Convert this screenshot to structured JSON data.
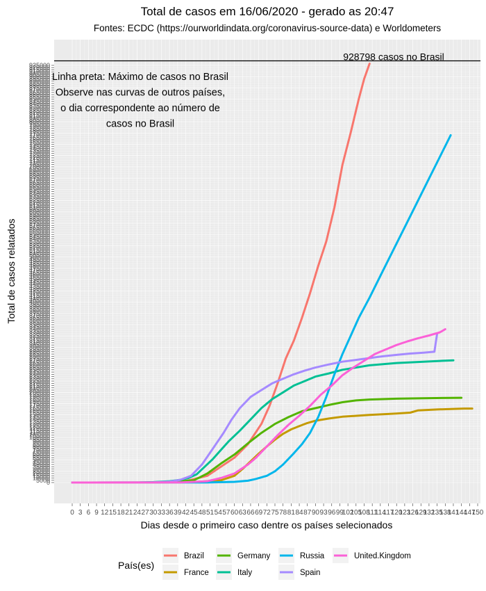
{
  "chart_data": {
    "type": "line",
    "title": "Total de casos em 16/06/2020 - gerado as 20:47",
    "subtitle": "Fontes: ECDC (https://ourworldindata.org/coronavirus-source-data) e Worldometers",
    "xlabel": "Dias desde o primeiro caso dentre os países selecionados",
    "ylabel": "Total de casos relatados",
    "xlim": [
      0,
      150
    ],
    "ylim": [
      0,
      925000
    ],
    "x_ticks": [
      0,
      3,
      6,
      9,
      12,
      15,
      18,
      21,
      24,
      27,
      30,
      33,
      36,
      39,
      42,
      45,
      48,
      51,
      54,
      57,
      60,
      63,
      66,
      69,
      72,
      75,
      78,
      81,
      84,
      87,
      90,
      93,
      96,
      99,
      102,
      105,
      108,
      111,
      114,
      117,
      120,
      123,
      126,
      129,
      132,
      135,
      138,
      141,
      144,
      147,
      150
    ],
    "y_tick_labels_top": "925000",
    "y_tick_labels_bottom": "5000",
    "y_zero_label": "0",
    "hline": {
      "value": 928798,
      "label": "928798 casos no Brasil"
    },
    "annotation": [
      "Linha preta: Máximo de casos no Brasil",
      "Observe nas curvas de outros países,",
      "o dia correspondente ao número de",
      "casos no Brasil"
    ],
    "legend": {
      "title": "País(es)",
      "placement": "bottom"
    },
    "series": [
      {
        "name": "Brazil",
        "color": "#F8766D",
        "points": [
          [
            0,
            0
          ],
          [
            40,
            500
          ],
          [
            50,
            15000
          ],
          [
            55,
            35000
          ],
          [
            60,
            55000
          ],
          [
            65,
            85000
          ],
          [
            70,
            130000
          ],
          [
            73,
            170000
          ],
          [
            76,
            220000
          ],
          [
            79,
            275000
          ],
          [
            82,
            315000
          ],
          [
            85,
            365000
          ],
          [
            88,
            420000
          ],
          [
            91,
            480000
          ],
          [
            94,
            535000
          ],
          [
            97,
            610000
          ],
          [
            100,
            705000
          ],
          [
            103,
            775000
          ],
          [
            106,
            850000
          ],
          [
            108,
            895000
          ],
          [
            110,
            928798
          ]
        ]
      },
      {
        "name": "France",
        "color": "#C49A00",
        "points": [
          [
            0,
            0
          ],
          [
            30,
            50
          ],
          [
            45,
            1000
          ],
          [
            55,
            5000
          ],
          [
            60,
            15000
          ],
          [
            63,
            30000
          ],
          [
            66,
            47000
          ],
          [
            69,
            64000
          ],
          [
            72,
            80000
          ],
          [
            75,
            95000
          ],
          [
            78,
            108000
          ],
          [
            81,
            118000
          ],
          [
            84,
            125000
          ],
          [
            87,
            132000
          ],
          [
            90,
            137000
          ],
          [
            95,
            142000
          ],
          [
            100,
            146000
          ],
          [
            110,
            150000
          ],
          [
            120,
            153000
          ],
          [
            125,
            155000
          ],
          [
            128,
            160000
          ],
          [
            135,
            162000
          ],
          [
            145,
            164000
          ],
          [
            148,
            164000
          ]
        ]
      },
      {
        "name": "Germany",
        "color": "#53B400",
        "points": [
          [
            0,
            0
          ],
          [
            35,
            100
          ],
          [
            45,
            5000
          ],
          [
            50,
            20000
          ],
          [
            55,
            42000
          ],
          [
            60,
            62000
          ],
          [
            65,
            87000
          ],
          [
            70,
            110000
          ],
          [
            75,
            130000
          ],
          [
            80,
            145000
          ],
          [
            85,
            158000
          ],
          [
            90,
            165000
          ],
          [
            95,
            172000
          ],
          [
            100,
            178000
          ],
          [
            105,
            182000
          ],
          [
            110,
            184000
          ],
          [
            120,
            186000
          ],
          [
            130,
            187000
          ],
          [
            144,
            188000
          ]
        ]
      },
      {
        "name": "Italy",
        "color": "#00C094",
        "points": [
          [
            0,
            0
          ],
          [
            25,
            100
          ],
          [
            30,
            1000
          ],
          [
            36,
            3000
          ],
          [
            40,
            6000
          ],
          [
            43,
            10000
          ],
          [
            46,
            18000
          ],
          [
            49,
            35000
          ],
          [
            52,
            52000
          ],
          [
            55,
            72000
          ],
          [
            58,
            92000
          ],
          [
            62,
            115000
          ],
          [
            66,
            140000
          ],
          [
            70,
            165000
          ],
          [
            74,
            185000
          ],
          [
            78,
            200000
          ],
          [
            82,
            215000
          ],
          [
            86,
            225000
          ],
          [
            90,
            235000
          ],
          [
            95,
            242000
          ],
          [
            100,
            250000
          ],
          [
            110,
            260000
          ],
          [
            120,
            265000
          ],
          [
            130,
            268000
          ],
          [
            141,
            271000
          ]
        ]
      },
      {
        "name": "Russia",
        "color": "#00B6EB",
        "points": [
          [
            0,
            0
          ],
          [
            50,
            200
          ],
          [
            60,
            1500
          ],
          [
            65,
            4000
          ],
          [
            68,
            8000
          ],
          [
            72,
            15000
          ],
          [
            75,
            25000
          ],
          [
            78,
            40000
          ],
          [
            82,
            65000
          ],
          [
            85,
            85000
          ],
          [
            88,
            110000
          ],
          [
            91,
            145000
          ],
          [
            94,
            190000
          ],
          [
            97,
            240000
          ],
          [
            100,
            285000
          ],
          [
            103,
            325000
          ],
          [
            106,
            365000
          ],
          [
            110,
            410000
          ],
          [
            115,
            470000
          ],
          [
            120,
            530000
          ],
          [
            125,
            590000
          ],
          [
            130,
            650000
          ],
          [
            135,
            710000
          ],
          [
            140,
            770000
          ]
        ]
      },
      {
        "name": "Spain",
        "color": "#A58AFF",
        "points": [
          [
            0,
            0
          ],
          [
            30,
            500
          ],
          [
            36,
            2000
          ],
          [
            40,
            6000
          ],
          [
            44,
            15000
          ],
          [
            48,
            40000
          ],
          [
            52,
            75000
          ],
          [
            56,
            110000
          ],
          [
            59,
            140000
          ],
          [
            62,
            165000
          ],
          [
            66,
            190000
          ],
          [
            70,
            205000
          ],
          [
            74,
            220000
          ],
          [
            78,
            230000
          ],
          [
            82,
            240000
          ],
          [
            86,
            248000
          ],
          [
            90,
            255000
          ],
          [
            95,
            262000
          ],
          [
            100,
            268000
          ],
          [
            105,
            272000
          ],
          [
            110,
            276000
          ],
          [
            115,
            280000
          ],
          [
            120,
            283000
          ],
          [
            125,
            286000
          ],
          [
            130,
            288000
          ],
          [
            134,
            290000
          ],
          [
            135,
            330000
          ]
        ]
      },
      {
        "name": "United.Kingdom",
        "color": "#FB61D7",
        "points": [
          [
            0,
            0
          ],
          [
            40,
            200
          ],
          [
            50,
            3000
          ],
          [
            55,
            10000
          ],
          [
            60,
            20000
          ],
          [
            65,
            40000
          ],
          [
            68,
            55000
          ],
          [
            72,
            80000
          ],
          [
            76,
            105000
          ],
          [
            80,
            128000
          ],
          [
            84,
            148000
          ],
          [
            88,
            170000
          ],
          [
            92,
            195000
          ],
          [
            96,
            215000
          ],
          [
            100,
            238000
          ],
          [
            104,
            255000
          ],
          [
            108,
            270000
          ],
          [
            112,
            285000
          ],
          [
            116,
            295000
          ],
          [
            120,
            305000
          ],
          [
            124,
            313000
          ],
          [
            128,
            320000
          ],
          [
            132,
            326000
          ],
          [
            136,
            333000
          ],
          [
            138,
            340000
          ]
        ]
      }
    ]
  }
}
